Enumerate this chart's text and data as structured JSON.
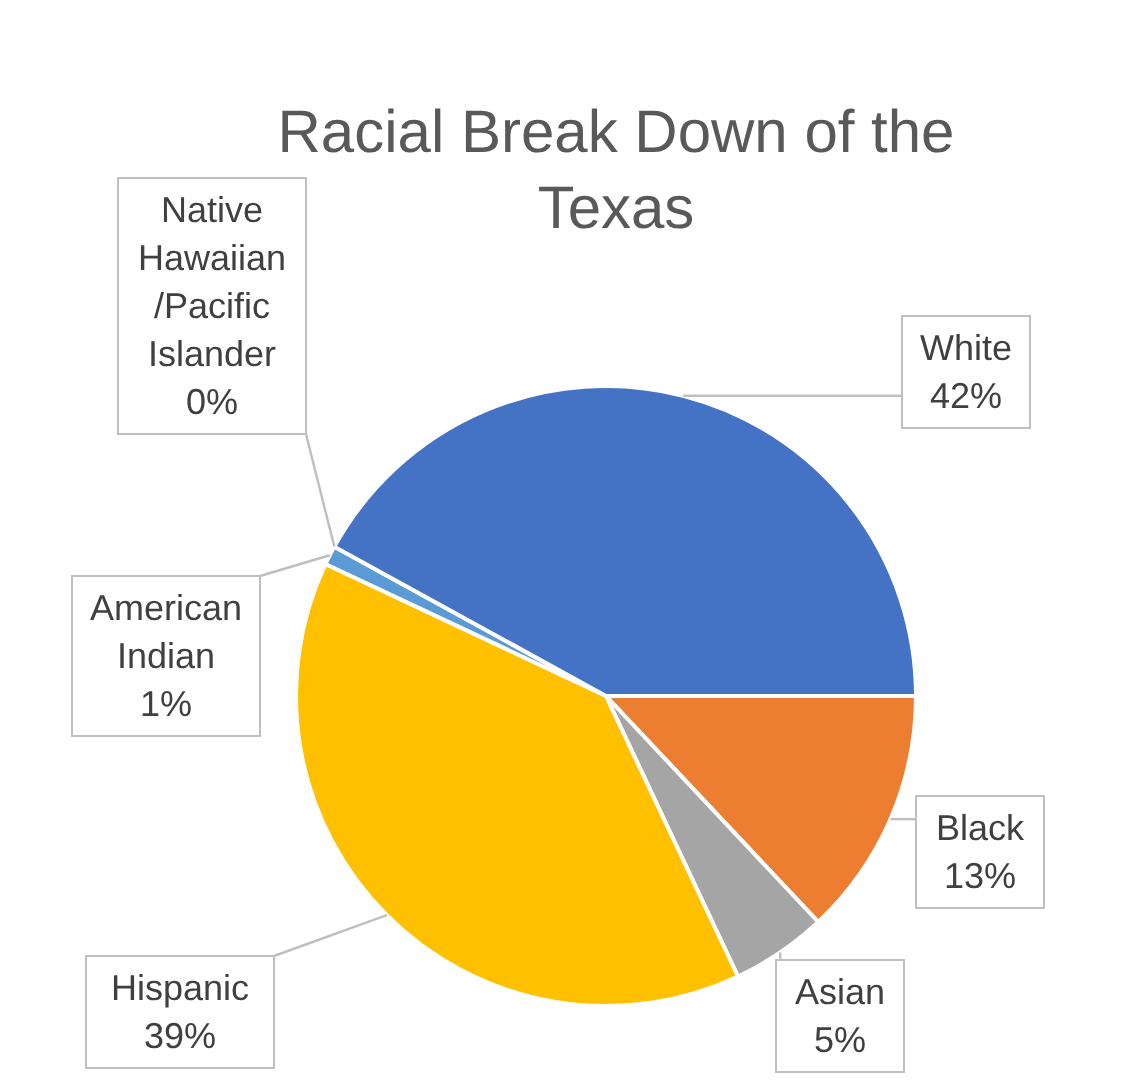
{
  "chart_data": {
    "type": "pie",
    "title": "Racial Break Down of the Texas",
    "categories": [
      "Black",
      "Asian",
      "Hispanic",
      "American Indian",
      "Native Hawaiian /Pacific Islander",
      "White"
    ],
    "values": [
      13,
      5,
      39,
      1,
      0,
      42
    ],
    "colors": [
      "#ed7d31",
      "#a5a5a5",
      "#ffc000",
      "#5b9bd5",
      "#70ad47",
      "#4472c4"
    ],
    "value_labels": [
      "13%",
      "5%",
      "39%",
      "1%",
      "0%",
      "42%"
    ]
  }
}
